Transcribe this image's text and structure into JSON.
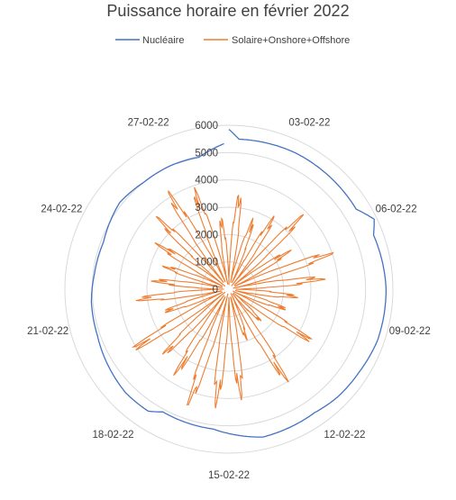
{
  "chart_data": {
    "type": "radar",
    "title": "Puissance horaire en février 2022",
    "radial_range": [
      0,
      6000
    ],
    "radial_ticks": [
      0,
      1000,
      2000,
      3000,
      4000,
      5000,
      6000
    ],
    "category_labels": [
      {
        "label": "27-02-22",
        "day": 27
      },
      {
        "label": "03-02-22",
        "day": 3
      },
      {
        "label": "06-02-22",
        "day": 6
      },
      {
        "label": "09-02-22",
        "day": 9
      },
      {
        "label": "12-02-22",
        "day": 12
      },
      {
        "label": "15-02-22",
        "day": 15
      },
      {
        "label": "18-02-22",
        "day": 18
      },
      {
        "label": "21-02-22",
        "day": 21
      },
      {
        "label": "24-02-22",
        "day": 24
      }
    ],
    "days_in_period": 28,
    "grid": true,
    "legend": "top",
    "series": [
      {
        "name": "Nucléaire",
        "color": "#4472C4",
        "anchor_days": [
          1,
          1.3,
          3,
          5.5,
          6,
          6.4,
          8,
          9.5,
          10.5,
          11.5,
          12.3,
          14,
          15.5,
          17.2,
          17.6,
          18.5,
          20.5,
          21.6,
          22.5,
          23.6,
          25,
          26,
          27,
          28,
          28.9
        ],
        "anchor_values": [
          5850,
          5500,
          5550,
          5500,
          5900,
          5650,
          5750,
          5750,
          5650,
          5600,
          5500,
          5550,
          5150,
          5100,
          5350,
          5350,
          5100,
          5050,
          4950,
          4900,
          5100,
          5000,
          5000,
          4950,
          5350
        ]
      },
      {
        "name": "Solaire+Onshore+Offshore",
        "color": "#ED7D31",
        "daily_peaks": [
          3600,
          2800,
          3200,
          3900,
          2700,
          4100,
          3600,
          2600,
          2300,
          3700,
          1700,
          4100,
          2000,
          4100,
          4400,
          4600,
          3800,
          3500,
          4300,
          2600,
          3500,
          2900,
          2600,
          3200,
          3800,
          4300,
          4000,
          2700
        ]
      }
    ]
  }
}
